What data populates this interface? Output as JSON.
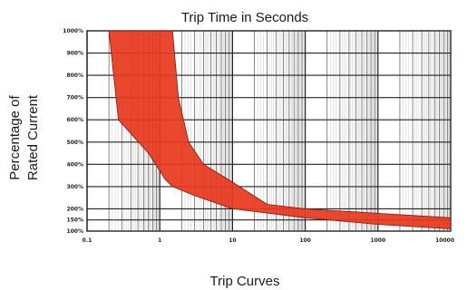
{
  "chart_data": {
    "type": "area",
    "title": "Trip Time in Seconds",
    "xlabel": "Trip Curves",
    "ylabel_lines": [
      "Percentage of",
      "Rated Current"
    ],
    "x_scale": "log",
    "xlim": [
      0.1,
      10000
    ],
    "ylim": [
      100,
      1000
    ],
    "x_tick_labels": [
      {
        "value": 0.1,
        "label": "0.1"
      },
      {
        "value": 1,
        "label": "1"
      },
      {
        "value": 10,
        "label": "10"
      },
      {
        "value": 100,
        "label": "100"
      },
      {
        "value": 1000,
        "label": "1000"
      },
      {
        "value": 10000,
        "label": "10000"
      }
    ],
    "y_tick_labels": [
      {
        "value": 1000,
        "label": "1000%"
      },
      {
        "value": 900,
        "label": "900%"
      },
      {
        "value": 800,
        "label": "800%"
      },
      {
        "value": 700,
        "label": "700%"
      },
      {
        "value": 600,
        "label": "600%"
      },
      {
        "value": 500,
        "label": "500%"
      },
      {
        "value": 400,
        "label": "400%"
      },
      {
        "value": 300,
        "label": "300%"
      },
      {
        "value": 200,
        "label": "200%"
      },
      {
        "value": 150,
        "label": "150%"
      },
      {
        "value": 100,
        "label": "100%"
      }
    ],
    "grid": true,
    "series": [
      {
        "fill_color": "#e8391f",
        "upper": [
          {
            "x": 0.2,
            "y": 1000
          },
          {
            "x": 1.5,
            "y": 1000
          },
          {
            "x": 1.8,
            "y": 700
          },
          {
            "x": 2.5,
            "y": 500
          },
          {
            "x": 4,
            "y": 400
          },
          {
            "x": 10,
            "y": 320
          },
          {
            "x": 30,
            "y": 220
          },
          {
            "x": 100,
            "y": 200
          },
          {
            "x": 1000,
            "y": 180
          },
          {
            "x": 10000,
            "y": 160
          }
        ],
        "lower": [
          {
            "x": 0.27,
            "y": 600
          },
          {
            "x": 0.7,
            "y": 450
          },
          {
            "x": 1.2,
            "y": 330
          },
          {
            "x": 1.5,
            "y": 300
          },
          {
            "x": 3,
            "y": 260
          },
          {
            "x": 10,
            "y": 200
          },
          {
            "x": 100,
            "y": 160
          },
          {
            "x": 1000,
            "y": 130
          },
          {
            "x": 10000,
            "y": 110
          }
        ]
      }
    ]
  }
}
